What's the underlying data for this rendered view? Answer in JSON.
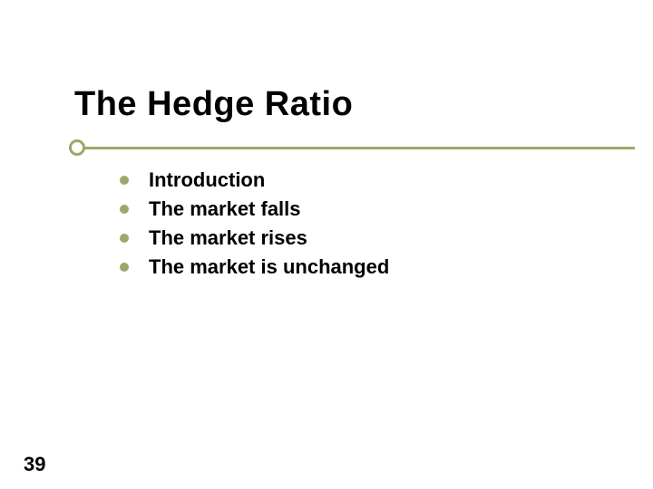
{
  "title": {
    "text": "The Hedge Ratio",
    "color": "#000000",
    "fontsize": 38
  },
  "rule": {
    "line_color": "#9aa86a",
    "dot_border_color": "#9aa86a",
    "dot_border_width": 3
  },
  "bullets": {
    "items": [
      {
        "text": "Introduction"
      },
      {
        "text": "The market falls"
      },
      {
        "text": "The market rises"
      },
      {
        "text": "The market is unchanged"
      }
    ],
    "dot_color": "#9aa86a",
    "text_color": "#000000",
    "fontsize": 22,
    "line_gap": 6
  },
  "page_number": {
    "text": "39",
    "color": "#000000",
    "fontsize": 22
  },
  "background_color": "#ffffff"
}
